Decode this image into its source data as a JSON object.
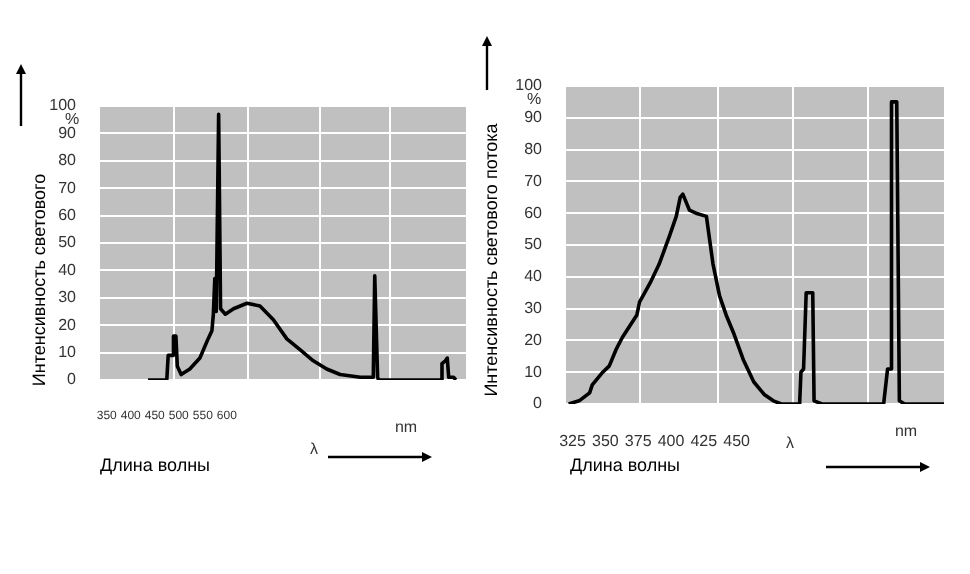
{
  "chart_data": [
    {
      "type": "line",
      "ylabel": "Интенсивность светового",
      "xlabel": "Длина волны",
      "annotations": [
        "%",
        "nm",
        "λ"
      ],
      "grid": true,
      "marker": "none",
      "xlim": [
        336,
        1098
      ],
      "ylim": [
        0,
        100
      ],
      "xticks": [
        350,
        400,
        450,
        {
          "value": 490,
          "label": null
        },
        500,
        550,
        600,
        {
          "value": 645,
          "label": null
        },
        {
          "value": 795,
          "label": null
        },
        {
          "value": 940,
          "label": null
        }
      ],
      "yticks": [
        0,
        10,
        20,
        30,
        40,
        50,
        60,
        70,
        80,
        90,
        100
      ],
      "series": [
        {
          "color": "#000000",
          "x": [
            436,
            475,
            478,
            486,
            489,
            494,
            497,
            505,
            523,
            544,
            561,
            569,
            572,
            575,
            578,
            583,
            587,
            597,
            614,
            642,
            669,
            697,
            725,
            753,
            780,
            808,
            836,
            878,
            905,
            908,
            914,
            916,
            1044,
            1048,
            1055,
            1059,
            1062,
            1072,
            1077
          ],
          "values": [
            0,
            0,
            9,
            9,
            16,
            16,
            5,
            2,
            4,
            8,
            15,
            18,
            24,
            37,
            25,
            97,
            26,
            24,
            26,
            28,
            27,
            22,
            15,
            11,
            7,
            4,
            2,
            1,
            1,
            38,
            1,
            0,
            0,
            6,
            7,
            8,
            1,
            1,
            0
          ]
        }
      ]
    },
    {
      "type": "line",
      "ylabel": "Интенсивность светового потока",
      "xlabel": "Длина волны",
      "annotations": [
        "%",
        "nm",
        "λ"
      ],
      "grid": true,
      "marker": "none",
      "xlim": [
        320,
        608
      ],
      "ylim": [
        0,
        100
      ],
      "xticks": [
        325,
        350,
        375,
        {
          "value": 376,
          "label": null
        },
        400,
        425,
        {
          "value": 436,
          "label": null
        },
        450,
        {
          "value": 493,
          "label": null
        },
        {
          "value": 550,
          "label": null
        }
      ],
      "yticks": [
        0,
        10,
        20,
        30,
        40,
        50,
        60,
        70,
        80,
        90,
        100
      ],
      "series": [
        {
          "color": "#000000",
          "x": [
            322,
            330,
            338,
            340,
            348,
            353,
            358,
            363,
            374,
            376,
            384,
            391,
            399,
            404,
            407,
            409,
            412,
            414,
            419,
            427,
            432,
            437,
            442,
            448,
            455,
            463,
            471,
            478,
            484,
            498,
            499,
            501,
            503,
            508,
            509,
            515,
            562,
            565,
            567,
            568,
            572,
            574,
            578,
            608
          ],
          "values": [
            0,
            1,
            3.5,
            6,
            10,
            12,
            17,
            21,
            28,
            32,
            38,
            44,
            53,
            59,
            65,
            66,
            63,
            61,
            60,
            59,
            44,
            34,
            28,
            22,
            14,
            7,
            3,
            1,
            0,
            0,
            10,
            11,
            35,
            35,
            1,
            0,
            0,
            11,
            11,
            95,
            95,
            1,
            0,
            0
          ]
        }
      ]
    }
  ]
}
